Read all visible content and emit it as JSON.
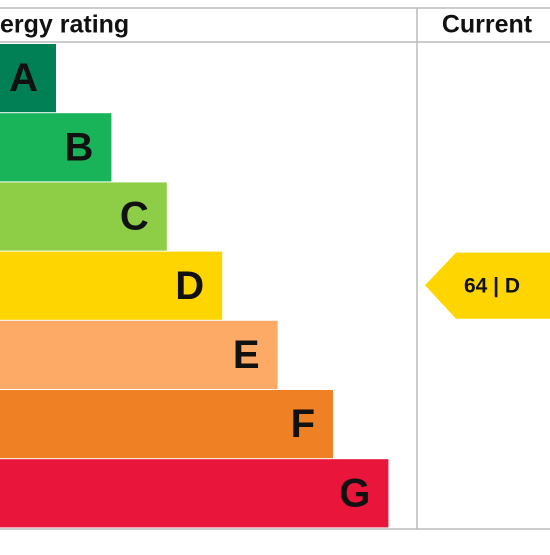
{
  "header": {
    "title": "ergy rating",
    "current": "Current"
  },
  "ratings": [
    {
      "letter": "A",
      "color": "#008054"
    },
    {
      "letter": "B",
      "color": "#19b459"
    },
    {
      "letter": "C",
      "color": "#8dce46"
    },
    {
      "letter": "D",
      "color": "#ffd500"
    },
    {
      "letter": "E",
      "color": "#fcaa65"
    },
    {
      "letter": "F",
      "color": "#ef8023"
    },
    {
      "letter": "G",
      "color": "#e9153b"
    }
  ],
  "current": {
    "label": "64 | D",
    "row": 3,
    "color": "#ffd500"
  }
}
